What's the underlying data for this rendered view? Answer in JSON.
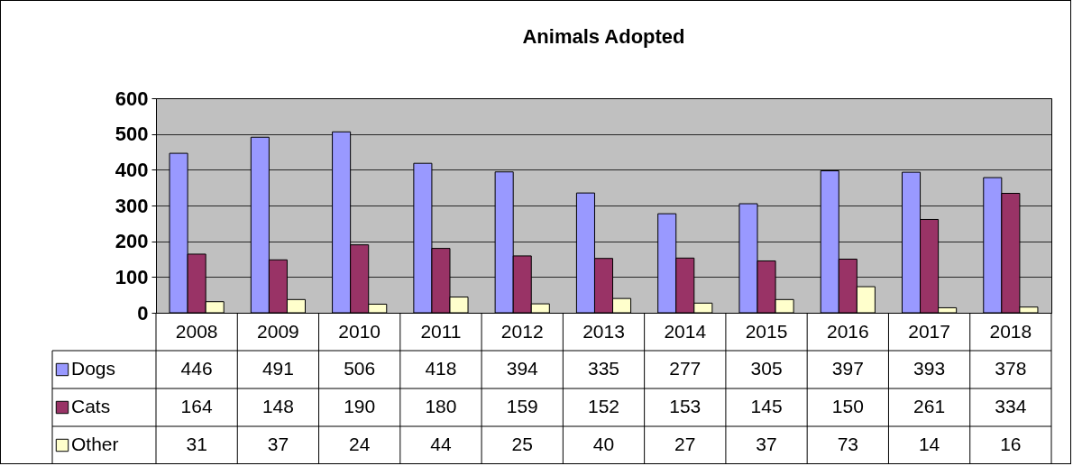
{
  "chart_data": {
    "type": "bar",
    "title": "Animals Adopted",
    "categories": [
      "2008",
      "2009",
      "2010",
      "2011",
      "2012",
      "2013",
      "2014",
      "2015",
      "2016",
      "2017",
      "2018"
    ],
    "series": [
      {
        "name": "Dogs",
        "color": "#9999ff",
        "values": [
          446,
          491,
          506,
          418,
          394,
          335,
          277,
          305,
          397,
          393,
          378
        ]
      },
      {
        "name": "Cats",
        "color": "#993366",
        "values": [
          164,
          148,
          190,
          180,
          159,
          152,
          153,
          145,
          150,
          261,
          334
        ]
      },
      {
        "name": "Other",
        "color": "#ffffcc",
        "values": [
          31,
          37,
          24,
          44,
          25,
          40,
          27,
          37,
          73,
          14,
          16
        ]
      }
    ],
    "ylim": [
      0,
      600
    ],
    "yticks": [
      0,
      100,
      200,
      300,
      400,
      500,
      600
    ],
    "grid": "y",
    "legend": "bottom left",
    "data_labels": true
  }
}
